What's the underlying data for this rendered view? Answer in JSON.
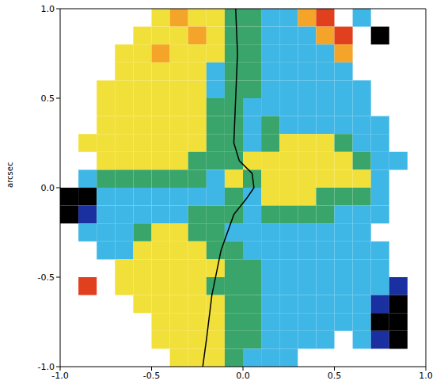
{
  "chart_data": {
    "type": "heatmap",
    "ylabel": "arcsec",
    "xlim": [
      -1,
      1
    ],
    "ylim": [
      -1,
      1
    ],
    "xticks": [
      {
        "value": -1,
        "label": "-1.0"
      },
      {
        "value": -0.5,
        "label": "-0.5"
      },
      {
        "value": 0,
        "label": "0.0"
      },
      {
        "value": 0.5,
        "label": "0.5"
      },
      {
        "value": 1,
        "label": "1.0"
      }
    ],
    "yticks": [
      {
        "value": -1,
        "label": "-1.0"
      },
      {
        "value": -0.5,
        "label": "-0.5"
      },
      {
        "value": 0,
        "label": "0.0"
      },
      {
        "value": 0.5,
        "label": "0.5"
      },
      {
        "value": 1,
        "label": "1.0"
      }
    ],
    "grid": false,
    "cells": [
      [
        null,
        null,
        null,
        null,
        null,
        1,
        2,
        1,
        1,
        0,
        0,
        -1,
        -1,
        2,
        3,
        null,
        -1,
        null,
        null,
        null
      ],
      [
        null,
        null,
        null,
        null,
        1,
        1,
        1,
        2,
        1,
        0,
        0,
        -1,
        -1,
        -1,
        2,
        3,
        null,
        -3,
        null,
        null
      ],
      [
        null,
        null,
        null,
        1,
        1,
        2,
        1,
        1,
        1,
        0,
        0,
        -1,
        -1,
        -1,
        -1,
        2,
        null,
        null,
        null,
        null
      ],
      [
        null,
        null,
        null,
        1,
        1,
        1,
        1,
        1,
        -1,
        0,
        0,
        -1,
        -1,
        -1,
        -1,
        -1,
        null,
        null,
        null,
        null
      ],
      [
        null,
        null,
        1,
        1,
        1,
        1,
        1,
        1,
        -1,
        0,
        0,
        -1,
        -1,
        -1,
        -1,
        -1,
        -1,
        null,
        null,
        null
      ],
      [
        null,
        null,
        1,
        1,
        1,
        1,
        1,
        1,
        0,
        0,
        -1,
        -1,
        -1,
        -1,
        -1,
        -1,
        -1,
        null,
        null,
        null
      ],
      [
        null,
        null,
        1,
        1,
        1,
        1,
        1,
        1,
        0,
        0,
        -1,
        0,
        -1,
        -1,
        -1,
        -1,
        -1,
        -1,
        null,
        null
      ],
      [
        null,
        1,
        1,
        1,
        1,
        1,
        1,
        1,
        0,
        0,
        -1,
        0,
        1,
        1,
        1,
        0,
        -1,
        -1,
        null,
        null
      ],
      [
        null,
        null,
        1,
        1,
        1,
        1,
        1,
        0,
        0,
        0,
        1,
        1,
        1,
        1,
        1,
        1,
        0,
        -1,
        -1,
        null
      ],
      [
        null,
        -1,
        0,
        0,
        0,
        0,
        0,
        0,
        -1,
        1,
        0,
        1,
        1,
        1,
        1,
        1,
        1,
        -1,
        null,
        null
      ],
      [
        -3,
        -3,
        -1,
        -1,
        -1,
        -1,
        -1,
        -1,
        -1,
        0,
        -1,
        1,
        1,
        1,
        0,
        0,
        0,
        -1,
        null,
        null
      ],
      [
        -3,
        -2,
        -1,
        -1,
        -1,
        -1,
        -1,
        0,
        0,
        0,
        -1,
        0,
        0,
        0,
        0,
        -1,
        -1,
        -1,
        null,
        null
      ],
      [
        null,
        -1,
        -1,
        -1,
        0,
        1,
        1,
        0,
        0,
        -1,
        -1,
        -1,
        -1,
        -1,
        -1,
        -1,
        -1,
        null,
        null,
        null
      ],
      [
        null,
        null,
        -1,
        -1,
        1,
        1,
        1,
        1,
        0,
        0,
        -1,
        -1,
        -1,
        -1,
        -1,
        -1,
        -1,
        -1,
        null,
        null
      ],
      [
        null,
        null,
        null,
        1,
        1,
        1,
        1,
        1,
        1,
        0,
        0,
        -1,
        -1,
        -1,
        -1,
        -1,
        -1,
        -1,
        null,
        null
      ],
      [
        null,
        3,
        null,
        1,
        1,
        1,
        1,
        1,
        0,
        0,
        0,
        -1,
        -1,
        -1,
        -1,
        -1,
        -1,
        -1,
        -2,
        null
      ],
      [
        null,
        null,
        null,
        null,
        1,
        1,
        1,
        1,
        1,
        0,
        0,
        -1,
        -1,
        -1,
        -1,
        -1,
        -1,
        -2,
        -3,
        null
      ],
      [
        null,
        null,
        null,
        null,
        null,
        1,
        1,
        1,
        1,
        0,
        0,
        -1,
        -1,
        -1,
        -1,
        -1,
        -1,
        -3,
        -3,
        null
      ],
      [
        null,
        null,
        null,
        null,
        null,
        1,
        1,
        1,
        1,
        0,
        0,
        -1,
        -1,
        -1,
        -1,
        null,
        -1,
        -2,
        -3,
        null
      ],
      [
        null,
        null,
        null,
        null,
        null,
        null,
        1,
        1,
        1,
        0,
        -1,
        -1,
        -1,
        null,
        null,
        null,
        null,
        null,
        null,
        null
      ]
    ],
    "curve": {
      "color": "#000000",
      "x": [
        -0.04,
        -0.03,
        -0.04,
        -0.05,
        -0.02,
        0.05,
        0.06,
        0.02,
        -0.05,
        -0.12,
        -0.17,
        -0.2,
        -0.22
      ],
      "y": [
        1.0,
        0.75,
        0.5,
        0.25,
        0.15,
        0.08,
        0.0,
        -0.06,
        -0.15,
        -0.35,
        -0.6,
        -0.85,
        -1.0
      ]
    }
  }
}
